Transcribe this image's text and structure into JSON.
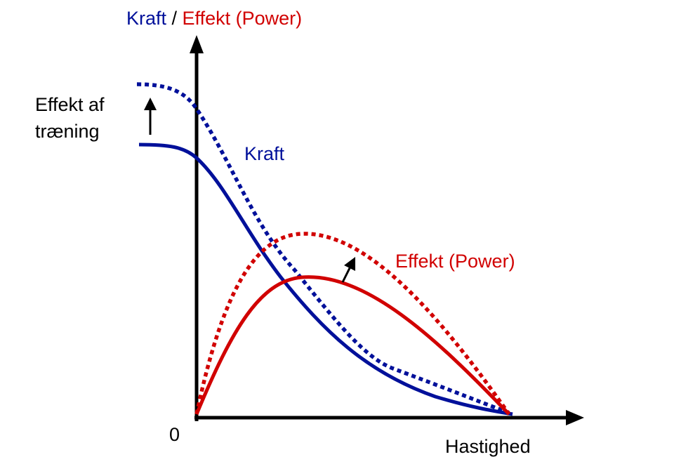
{
  "title": {
    "part1": "Kraft",
    "separator": " / ",
    "part2": "Effekt (Power)"
  },
  "labels": {
    "training_effect_line1": "Effekt af",
    "training_effect_line2": "træning",
    "force": "Kraft",
    "power": "Effekt (Power)",
    "origin": "0",
    "x_axis": "Hastighed"
  },
  "colors": {
    "force": "#00109a",
    "power": "#d10000",
    "axis": "#000000"
  }
}
